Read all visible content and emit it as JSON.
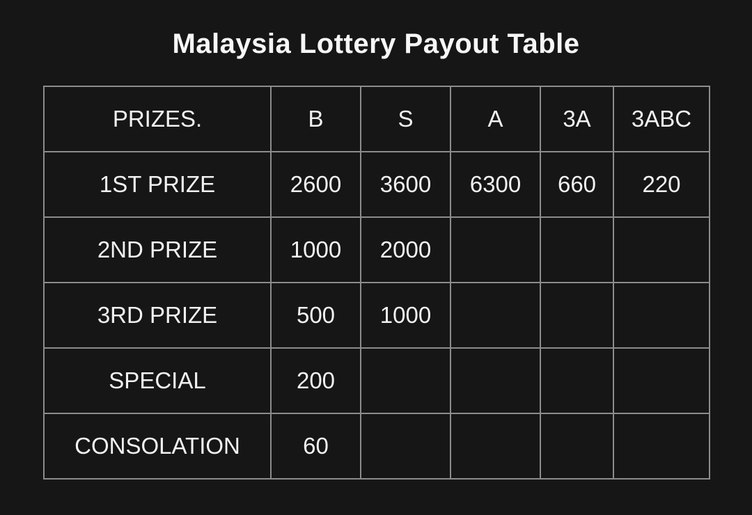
{
  "title": "Malaysia Lottery Payout Table",
  "colors": {
    "background": "#161616",
    "table_border": "#8c8c8c",
    "text": "#f2f2f2"
  },
  "chart_data": {
    "type": "table",
    "title": "Malaysia Lottery Payout Table",
    "columns": [
      "PRIZES.",
      "B",
      "S",
      "A",
      "3A",
      "3ABC"
    ],
    "rows": [
      {
        "label": "1ST PRIZE",
        "values": [
          "2600",
          "3600",
          "6300",
          "660",
          "220"
        ]
      },
      {
        "label": "2ND PRIZE",
        "values": [
          "1000",
          "2000",
          "",
          "",
          ""
        ]
      },
      {
        "label": "3RD PRIZE",
        "values": [
          "500",
          "1000",
          "",
          "",
          ""
        ]
      },
      {
        "label": "SPECIAL",
        "values": [
          "200",
          "",
          "",
          "",
          ""
        ]
      },
      {
        "label": "CONSOLATION",
        "values": [
          "60",
          "",
          "",
          "",
          ""
        ]
      }
    ],
    "layout": {
      "grid": true,
      "header_row": true,
      "cell_alignment": "center"
    }
  }
}
